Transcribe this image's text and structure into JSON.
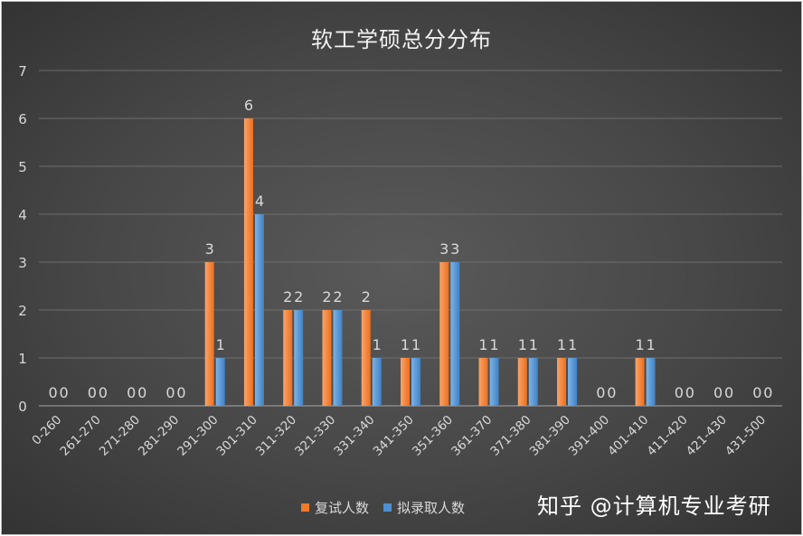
{
  "chart_data": {
    "type": "bar",
    "title": "软工学硕总分分布",
    "categories": [
      "0-260",
      "261-270",
      "271-280",
      "281-290",
      "291-300",
      "301-310",
      "311-320",
      "321-330",
      "331-340",
      "341-350",
      "351-360",
      "361-370",
      "371-380",
      "381-390",
      "391-400",
      "401-410",
      "411-420",
      "421-430",
      "431-500"
    ],
    "series": [
      {
        "name": "复试人数",
        "color": "#f07a2a",
        "values": [
          0,
          0,
          0,
          0,
          3,
          6,
          2,
          2,
          2,
          1,
          3,
          1,
          1,
          1,
          0,
          1,
          0,
          0,
          0
        ]
      },
      {
        "name": "拟录取人数",
        "color": "#4d8fd0",
        "values": [
          0,
          0,
          0,
          0,
          1,
          4,
          2,
          2,
          1,
          1,
          3,
          1,
          1,
          1,
          0,
          1,
          0,
          0,
          0
        ]
      }
    ],
    "ylim": [
      0,
      7
    ],
    "yticks": [
      0,
      1,
      2,
      3,
      4,
      5,
      6,
      7
    ],
    "grid": true,
    "legend_position": "bottom"
  },
  "watermark": "知乎 @计算机专业考研"
}
